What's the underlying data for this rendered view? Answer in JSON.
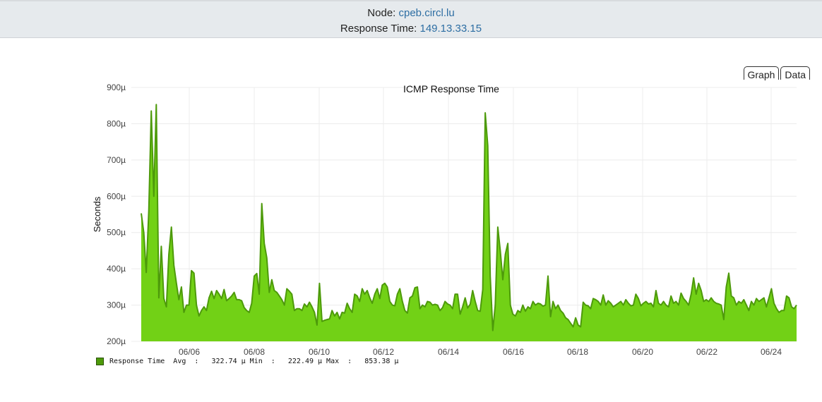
{
  "header": {
    "node_label": "Node: ",
    "node_value": "cpeb.circl.lu",
    "resp_label": "Response Time: ",
    "resp_value": "149.13.33.15"
  },
  "tabs": [
    {
      "label": "Graph",
      "active": true
    },
    {
      "label": "Data",
      "active": false
    }
  ],
  "legend": {
    "series_name": "Response Time",
    "stats_text": "Response Time  Avg  :   322.74 µ Min  :   222.49 µ Max  :   853.38 µ",
    "avg": "322.74 µ",
    "min": "222.49 µ",
    "max": "853.38 µ",
    "color": "#4d9a0a"
  },
  "colors": {
    "fill": "#72d116",
    "line": "#4d9a0a",
    "grid": "#ececec",
    "header_bg": "#e6eaed",
    "link": "#2d6ea3"
  },
  "chart_data": {
    "type": "area",
    "title": "ICMP Response Time",
    "xlabel": "",
    "ylabel": "Seconds",
    "ylim": [
      200,
      900
    ],
    "y_unit": "µs",
    "y_ticks": [
      "200µ",
      "300µ",
      "400µ",
      "500µ",
      "600µ",
      "700µ",
      "800µ",
      "900µ"
    ],
    "x_ticks": [
      "06/06",
      "06/08",
      "06/10",
      "06/12",
      "06/14",
      "06/16",
      "06/18",
      "06/20",
      "06/22",
      "06/24"
    ],
    "x_range_days": [
      "06/04 ~12:00",
      "06/25 ~03:00"
    ],
    "grid": true,
    "legend_position": "bottom-left",
    "series": [
      {
        "name": "Response Time",
        "stats": {
          "avg": 322.74,
          "min": 222.49,
          "max": 853.38
        },
        "values": [
          553,
          500,
          390,
          560,
          835,
          600,
          853,
          320,
          462,
          318,
          295,
          440,
          515,
          410,
          360,
          315,
          350,
          280,
          300,
          300,
          395,
          388,
          300,
          270,
          285,
          295,
          285,
          320,
          338,
          318,
          340,
          330,
          318,
          343,
          312,
          318,
          325,
          335,
          315,
          315,
          312,
          293,
          285,
          280,
          305,
          380,
          387,
          330,
          580,
          470,
          430,
          335,
          370,
          340,
          335,
          325,
          315,
          300,
          345,
          338,
          330,
          285,
          290,
          290,
          285,
          303,
          295,
          308,
          295,
          280,
          245,
          360,
          255,
          258,
          260,
          262,
          285,
          270,
          280,
          262,
          280,
          278,
          305,
          290,
          280,
          330,
          325,
          310,
          345,
          330,
          340,
          320,
          305,
          330,
          345,
          318,
          355,
          360,
          350,
          310,
          300,
          298,
          330,
          345,
          310,
          285,
          278,
          320,
          325,
          348,
          350,
          290,
          300,
          295,
          310,
          308,
          300,
          302,
          300,
          285,
          293,
          310,
          303,
          300,
          290,
          330,
          330,
          275,
          295,
          320,
          292,
          302,
          340,
          310,
          285,
          283,
          343,
          830,
          740,
          380,
          230,
          300,
          515,
          450,
          370,
          440,
          470,
          300,
          275,
          270,
          285,
          280,
          300,
          283,
          295,
          290,
          310,
          300,
          305,
          303,
          297,
          300,
          380,
          268,
          310,
          290,
          300,
          285,
          278,
          265,
          260,
          250,
          240,
          265,
          245,
          240,
          308,
          300,
          298,
          290,
          318,
          315,
          310,
          300,
          328,
          300,
          312,
          305,
          295,
          300,
          305,
          310,
          300,
          315,
          305,
          298,
          300,
          330,
          318,
          298,
          305,
          310,
          303,
          305,
          295,
          340,
          305,
          300,
          310,
          300,
          295,
          325,
          305,
          310,
          300,
          333,
          318,
          310,
          300,
          330,
          375,
          330,
          360,
          340,
          310,
          315,
          310,
          320,
          310,
          305,
          303,
          300,
          260,
          350,
          388,
          325,
          320,
          300,
          310,
          305,
          315,
          300,
          285,
          310,
          300,
          318,
          310,
          315,
          320,
          295,
          320,
          345,
          305,
          290,
          280,
          285,
          285,
          325,
          320,
          295,
          290,
          300
        ]
      }
    ]
  }
}
